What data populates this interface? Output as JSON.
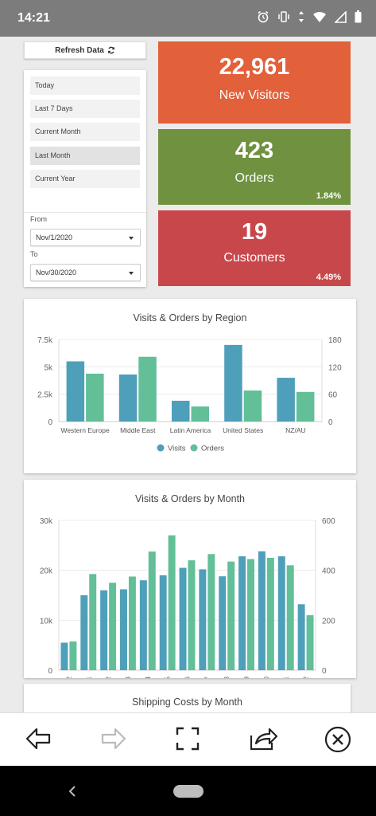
{
  "status": {
    "time": "14:21"
  },
  "refresh_label": "Refresh Data",
  "date_ranges": [
    "Today",
    "Last 7 Days",
    "Current Month",
    "Last Month",
    "Current Year"
  ],
  "selected_range": "Last Month",
  "from_label": "From",
  "from_value": "Nov/1/2020",
  "to_label": "To",
  "to_value": "Nov/30/2020",
  "kpis": {
    "visitors": {
      "value": "22,961",
      "caption": "New Visitors",
      "color": "#e2603a"
    },
    "orders": {
      "value": "423",
      "caption": "Orders",
      "percent": "1.84%",
      "color": "#6f9140"
    },
    "customers": {
      "value": "19",
      "caption": "Customers",
      "percent": "4.49%",
      "color": "#c8474b"
    }
  },
  "colors": {
    "visits": "#4e9fba",
    "orders": "#62bf98"
  },
  "chart_data": [
    {
      "type": "bar",
      "title": "Visits & Orders by Region",
      "categories": [
        "Western Europe",
        "Middle East",
        "Latin America",
        "United States",
        "NZ/AU"
      ],
      "series": [
        {
          "name": "Visits",
          "axis": "left",
          "values": [
            5500,
            4300,
            1900,
            7000,
            4000
          ]
        },
        {
          "name": "Orders",
          "axis": "right",
          "values": [
            105,
            142,
            33,
            68,
            65
          ]
        }
      ],
      "ylim_left": [
        0,
        7500
      ],
      "ylim_right": [
        0,
        180
      ],
      "yticks_left": [
        "0",
        "2.5k",
        "5k",
        "7.5k"
      ],
      "yticks_right": [
        "0",
        "60",
        "120",
        "180"
      ],
      "legend": "bottom"
    },
    {
      "type": "bar",
      "title": "Visits & Orders by Month",
      "categories": [
        "2019-12",
        "2020-01",
        "2020-02",
        "2020-03",
        "2020-04",
        "2020-05",
        "2020-06",
        "2020-07",
        "2020-08",
        "2020-09",
        "2020-10",
        "2020-11",
        "2020-12"
      ],
      "series": [
        {
          "name": "Visits",
          "axis": "left",
          "values": [
            5500,
            15000,
            16000,
            16200,
            18000,
            19000,
            20500,
            20200,
            18800,
            22800,
            23800,
            22800,
            13200
          ]
        },
        {
          "name": "Orders",
          "axis": "right",
          "values": [
            115,
            385,
            350,
            375,
            475,
            540,
            440,
            465,
            435,
            445,
            450,
            420,
            220
          ]
        }
      ],
      "ylim_left": [
        0,
        30000
      ],
      "ylim_right": [
        0,
        600
      ],
      "yticks_left": [
        "0",
        "10k",
        "20k",
        "30k"
      ],
      "yticks_right": [
        "0",
        "200",
        "400",
        "600"
      ]
    }
  ],
  "third_card_title": "Shipping Costs by Month"
}
